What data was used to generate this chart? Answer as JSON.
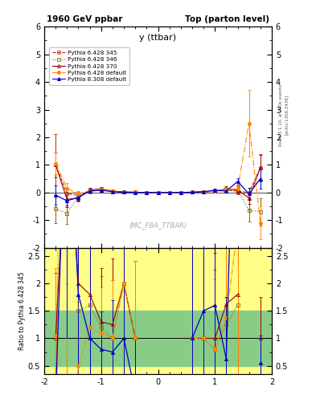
{
  "title_left": "1960 GeV ppbar",
  "title_right": "Top (parton level)",
  "plot_title": "y (ttbar)",
  "watermark": "(MC_FBA_TTBAR)",
  "ylabel_ratio": "Ratio to Pythia 6.428 345",
  "right_label_top": "Rivet 3.1.10, ≥ 100k events",
  "right_label_bot": "[arXiv:1306.3436]",
  "ylim_main": [
    -2.0,
    6.0
  ],
  "xlim": [
    -2.0,
    2.0
  ],
  "ratio_ylim": [
    0.35,
    2.65
  ],
  "x_centers": [
    -1.8,
    -1.6,
    -1.4,
    -1.2,
    -1.0,
    -0.8,
    -0.6,
    -0.4,
    -0.2,
    0.0,
    0.2,
    0.4,
    0.6,
    0.8,
    1.0,
    1.2,
    1.4,
    1.6,
    1.8
  ],
  "series": [
    {
      "label": "Pythia 6.428 345",
      "color": "#cc2200",
      "linestyle": "--",
      "marker": "o",
      "markerfilled": false,
      "linewidth": 0.8,
      "values": [
        1.0,
        -0.05,
        -0.1,
        0.05,
        0.1,
        0.04,
        0.01,
        0.01,
        0.0,
        0.0,
        0.0,
        0.0,
        0.01,
        0.02,
        0.05,
        0.08,
        0.05,
        0.0,
        0.9
      ],
      "errors": [
        1.1,
        0.18,
        0.12,
        0.09,
        0.06,
        0.03,
        0.02,
        0.01,
        0.01,
        0.01,
        0.01,
        0.01,
        0.02,
        0.03,
        0.05,
        0.09,
        0.12,
        0.18,
        0.5
      ]
    },
    {
      "label": "Pythia 6.428 346",
      "color": "#886600",
      "linestyle": ":",
      "marker": "s",
      "markerfilled": false,
      "linewidth": 0.8,
      "values": [
        -0.6,
        -0.75,
        -0.15,
        0.08,
        0.12,
        0.04,
        0.02,
        0.01,
        0.0,
        0.0,
        0.0,
        0.0,
        0.01,
        0.02,
        0.04,
        0.1,
        0.08,
        -0.65,
        -0.7
      ],
      "errors": [
        0.5,
        0.4,
        0.13,
        0.09,
        0.06,
        0.03,
        0.02,
        0.01,
        0.01,
        0.01,
        0.01,
        0.01,
        0.02,
        0.03,
        0.06,
        0.09,
        0.13,
        0.4,
        0.5
      ]
    },
    {
      "label": "Pythia 6.428 370",
      "color": "#990000",
      "linestyle": "-",
      "marker": "^",
      "markerfilled": false,
      "linewidth": 0.8,
      "values": [
        1.0,
        -0.25,
        -0.2,
        0.09,
        0.13,
        0.05,
        0.02,
        0.01,
        0.0,
        0.0,
        0.0,
        0.0,
        0.01,
        0.02,
        0.05,
        0.13,
        0.09,
        -0.2,
        0.9
      ],
      "errors": [
        0.45,
        0.22,
        0.13,
        0.09,
        0.06,
        0.03,
        0.02,
        0.01,
        0.01,
        0.01,
        0.01,
        0.01,
        0.02,
        0.03,
        0.06,
        0.09,
        0.13,
        0.22,
        0.45
      ]
    },
    {
      "label": "Pythia 6.428 default",
      "color": "#ff8800",
      "linestyle": "-.",
      "marker": "o",
      "markerfilled": true,
      "linewidth": 0.8,
      "values": [
        1.05,
        0.15,
        -0.05,
        0.06,
        0.11,
        0.04,
        0.02,
        0.01,
        0.0,
        0.0,
        0.0,
        0.0,
        0.01,
        0.02,
        0.04,
        0.11,
        0.15,
        2.5,
        -1.1
      ],
      "errors": [
        0.4,
        0.2,
        0.1,
        0.08,
        0.05,
        0.03,
        0.02,
        0.01,
        0.01,
        0.01,
        0.01,
        0.01,
        0.02,
        0.03,
        0.05,
        0.08,
        0.1,
        1.2,
        0.6
      ]
    },
    {
      "label": "Pythia 8.308 default",
      "color": "#0000cc",
      "linestyle": "-",
      "marker": "^",
      "markerfilled": true,
      "linewidth": 0.9,
      "values": [
        -0.1,
        -0.3,
        -0.18,
        0.05,
        0.08,
        0.03,
        0.01,
        0.0,
        0.0,
        0.0,
        0.0,
        0.0,
        0.01,
        0.03,
        0.08,
        0.05,
        0.4,
        -0.05,
        0.5
      ],
      "errors": [
        0.35,
        0.22,
        0.11,
        0.07,
        0.05,
        0.03,
        0.02,
        0.01,
        0.01,
        0.01,
        0.01,
        0.01,
        0.02,
        0.03,
        0.05,
        0.07,
        0.11,
        0.22,
        0.35
      ]
    }
  ]
}
